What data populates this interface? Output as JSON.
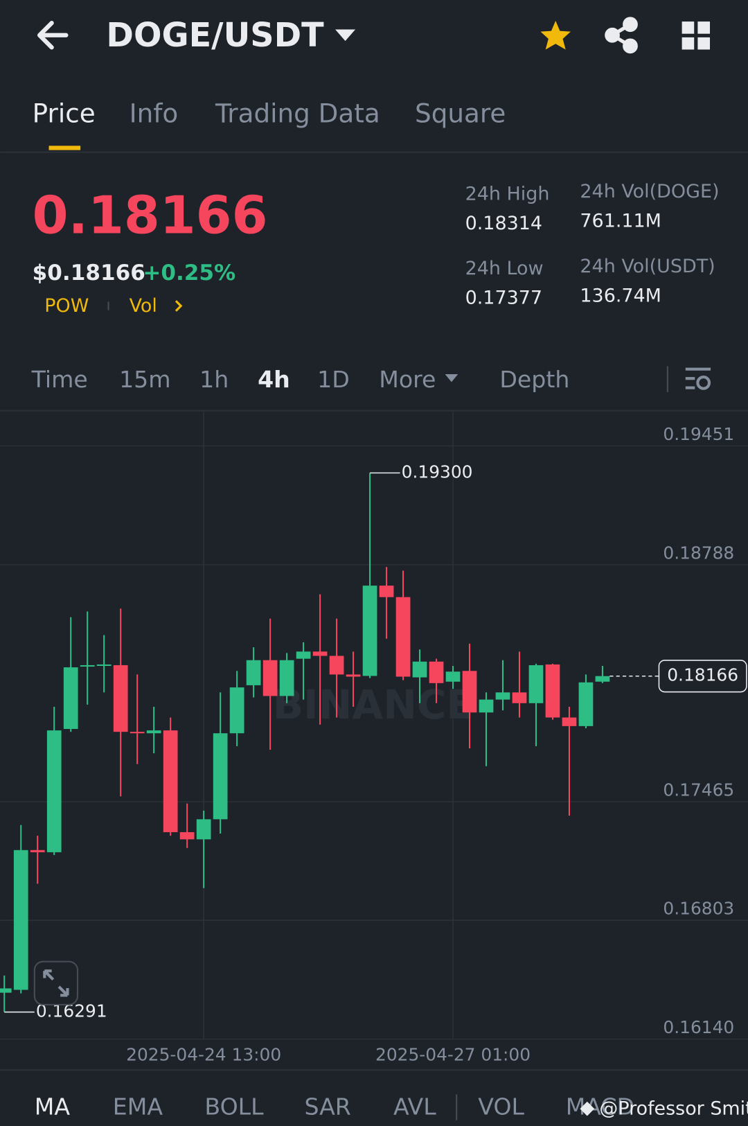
{
  "header": {
    "pair": "DOGE/USDT"
  },
  "tabs": [
    "Price",
    "Info",
    "Trading Data",
    "Square"
  ],
  "ticker": {
    "last": "0.18166",
    "usd": "$0.18166",
    "change": "+0.25%",
    "tags": [
      "POW",
      "Vol"
    ],
    "stats": [
      {
        "label": "24h High",
        "value": "0.18314"
      },
      {
        "label": "24h Vol(DOGE)",
        "value": "761.11M"
      },
      {
        "label": "24h Low",
        "value": "0.17377"
      },
      {
        "label": "24h Vol(USDT)",
        "value": "136.74M"
      }
    ]
  },
  "intervals": [
    "Time",
    "15m",
    "1h",
    "4h",
    "1D",
    "More",
    "Depth"
  ],
  "chart_data": {
    "type": "candlestick",
    "watermark": "BINANCE",
    "categories": [
      null,
      null,
      null,
      null,
      null,
      null,
      null,
      null,
      null,
      null,
      null,
      null,
      "2025-04-24 13:00",
      null,
      null,
      null,
      null,
      null,
      null,
      null,
      null,
      null,
      null,
      null,
      null,
      null,
      null,
      "2025-04-27 01:00",
      null,
      null,
      null,
      null,
      null,
      null,
      null,
      null,
      null
    ],
    "open": [
      0.16399,
      0.16415,
      0.17195,
      0.17183,
      0.17871,
      0.18223,
      0.18223,
      0.18227,
      0.17855,
      0.17847,
      0.17863,
      0.17295,
      0.17255,
      0.17367,
      0.17847,
      0.18115,
      0.18255,
      0.18055,
      0.18263,
      0.18303,
      0.18279,
      0.18175,
      0.18167,
      0.18671,
      0.18607,
      0.18159,
      0.18247,
      0.18135,
      0.18195,
      0.17963,
      0.18035,
      0.18075,
      0.18015,
      0.18231,
      0.17935,
      0.17887,
      0.18135
    ],
    "high": [
      0.16495,
      0.17335,
      0.17275,
      0.17995,
      0.18495,
      0.18527,
      0.18395,
      0.18543,
      0.18175,
      0.17995,
      0.17935,
      0.17455,
      0.17415,
      0.18075,
      0.18195,
      0.18327,
      0.18487,
      0.18295,
      0.18355,
      0.18623,
      0.18487,
      0.18303,
      0.193,
      0.18775,
      0.18755,
      0.18315,
      0.18263,
      0.18223,
      0.18347,
      0.18075,
      0.18255,
      0.18303,
      0.18235,
      0.18235,
      0.17995,
      0.18175,
      0.18223
    ],
    "low": [
      0.16291,
      0.16395,
      0.17007,
      0.17167,
      0.17855,
      0.18007,
      0.18075,
      0.17495,
      0.17675,
      0.17735,
      0.17275,
      0.17207,
      0.16983,
      0.17287,
      0.17775,
      0.18047,
      0.17755,
      0.18015,
      0.18035,
      0.17895,
      0.17935,
      0.17995,
      0.18155,
      0.18375,
      0.18143,
      0.18015,
      0.18015,
      0.18095,
      0.17763,
      0.17663,
      0.17975,
      0.17935,
      0.17775,
      0.17923,
      0.17387,
      0.17875,
      0.18127
    ],
    "close": [
      0.16423,
      0.17195,
      0.17183,
      0.17863,
      0.18215,
      0.18227,
      0.18231,
      0.17855,
      0.17847,
      0.17863,
      0.17295,
      0.17255,
      0.17367,
      0.17847,
      0.18103,
      0.18255,
      0.18055,
      0.18255,
      0.18303,
      0.18279,
      0.18175,
      0.18163,
      0.18671,
      0.18607,
      0.18163,
      0.18247,
      0.18127,
      0.18191,
      0.17963,
      0.18035,
      0.18075,
      0.18015,
      0.18227,
      0.17935,
      0.17887,
      0.18131,
      0.18166
    ],
    "ylim": [
      0.1614,
      0.19647
    ],
    "yticks": [
      0.19451,
      0.18788,
      0.17465,
      0.16803,
      {
        "value": 0.1614,
        "label": "0.16140"
      }
    ],
    "max_label": {
      "value": 0.193,
      "label": "0.19300"
    },
    "min_label": 0.16291,
    "last_price": 0.18166,
    "up_color": "#2ebd85",
    "down_color": "#f6465d"
  },
  "indicators": [
    "MA",
    "EMA",
    "BOLL",
    "SAR",
    "AVL",
    "VOL",
    "MACD"
  ],
  "watermark": "@Professor Smith"
}
